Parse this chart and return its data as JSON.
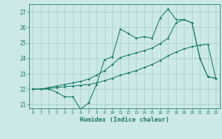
{
  "xlabel": "Humidex (Indice chaleur)",
  "background_color": "#cce8e8",
  "grid_color": "#aacfcf",
  "line_color": "#1a7a6a",
  "xlim": [
    -0.5,
    23.5
  ],
  "ylim": [
    20.75,
    27.5
  ],
  "yticks": [
    21,
    22,
    23,
    24,
    25,
    26,
    27
  ],
  "xticks": [
    0,
    1,
    2,
    3,
    4,
    5,
    6,
    7,
    8,
    9,
    10,
    11,
    12,
    13,
    14,
    15,
    16,
    17,
    18,
    19,
    20,
    21,
    22,
    23
  ],
  "line1_y": [
    22.0,
    22.0,
    22.0,
    21.8,
    21.5,
    21.5,
    20.7,
    21.1,
    22.3,
    23.9,
    24.1,
    25.9,
    25.6,
    25.3,
    25.4,
    25.3,
    26.6,
    27.2,
    26.5,
    26.5,
    26.3,
    24.0,
    22.8,
    22.7
  ],
  "line2_y": [
    22.0,
    22.0,
    22.05,
    22.1,
    22.15,
    22.2,
    22.25,
    22.3,
    22.4,
    22.55,
    22.7,
    22.9,
    23.05,
    23.2,
    23.4,
    23.6,
    23.85,
    24.15,
    24.4,
    24.6,
    24.75,
    24.85,
    24.9,
    22.7
  ],
  "line3_y": [
    22.0,
    22.0,
    22.1,
    22.2,
    22.3,
    22.4,
    22.5,
    22.65,
    22.9,
    23.2,
    23.6,
    24.05,
    24.2,
    24.35,
    24.5,
    24.65,
    24.95,
    25.3,
    26.3,
    26.5,
    26.3,
    24.0,
    22.8,
    22.7
  ]
}
